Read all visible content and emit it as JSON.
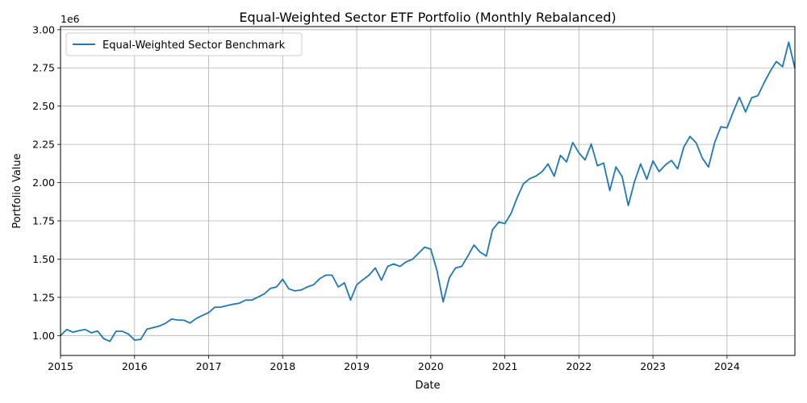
{
  "chart_data": {
    "type": "line",
    "title": "Equal-Weighted Sector ETF Portfolio (Monthly Rebalanced)",
    "xlabel": "Date",
    "ylabel": "Portfolio Value",
    "y_multiplier_label": "1e6",
    "xlim": [
      "2015-01",
      "2024-12"
    ],
    "ylim": [
      0.87,
      3.02
    ],
    "x_ticks": [
      "2015",
      "2016",
      "2017",
      "2018",
      "2019",
      "2020",
      "2021",
      "2022",
      "2023",
      "2024"
    ],
    "y_ticks": [
      "1.00",
      "1.25",
      "1.50",
      "1.75",
      "2.00",
      "2.25",
      "2.50",
      "2.75",
      "3.00"
    ],
    "y_tick_values": [
      1.0,
      1.25,
      1.5,
      1.75,
      2.0,
      2.25,
      2.5,
      2.75,
      3.0
    ],
    "grid": true,
    "legend_position": "top-left",
    "colors": {
      "line": "#1f77b4",
      "grid": "#b0b0b0",
      "axes": "#000000"
    },
    "series": [
      {
        "name": "Equal-Weighted Sector Benchmark",
        "x_start": "2015-01",
        "x_step": "1 month",
        "values": [
          1.0,
          1.04,
          1.022,
          1.032,
          1.04,
          1.018,
          1.03,
          0.98,
          0.962,
          1.028,
          1.028,
          1.01,
          0.97,
          0.975,
          1.042,
          1.052,
          1.062,
          1.08,
          1.108,
          1.102,
          1.1,
          1.082,
          1.112,
          1.132,
          1.15,
          1.185,
          1.186,
          1.196,
          1.205,
          1.212,
          1.232,
          1.232,
          1.252,
          1.272,
          1.308,
          1.318,
          1.368,
          1.305,
          1.292,
          1.298,
          1.318,
          1.332,
          1.372,
          1.395,
          1.395,
          1.318,
          1.345,
          1.232,
          1.332,
          1.365,
          1.395,
          1.442,
          1.362,
          1.452,
          1.468,
          1.452,
          1.482,
          1.498,
          1.538,
          1.578,
          1.565,
          1.425,
          1.22,
          1.378,
          1.442,
          1.452,
          1.52,
          1.592,
          1.545,
          1.52,
          1.692,
          1.742,
          1.732,
          1.798,
          1.902,
          1.992,
          2.025,
          2.042,
          2.07,
          2.122,
          2.042,
          2.178,
          2.135,
          2.262,
          2.195,
          2.148,
          2.252,
          2.11,
          2.128,
          1.948,
          2.102,
          2.04,
          1.85,
          2.005,
          2.122,
          2.022,
          2.142,
          2.072,
          2.115,
          2.145,
          2.09,
          2.232,
          2.302,
          2.26,
          2.16,
          2.102,
          2.262,
          2.365,
          2.358,
          2.462,
          2.558,
          2.462,
          2.555,
          2.568,
          2.652,
          2.728,
          2.792,
          2.758,
          2.918,
          2.748
        ]
      }
    ]
  }
}
